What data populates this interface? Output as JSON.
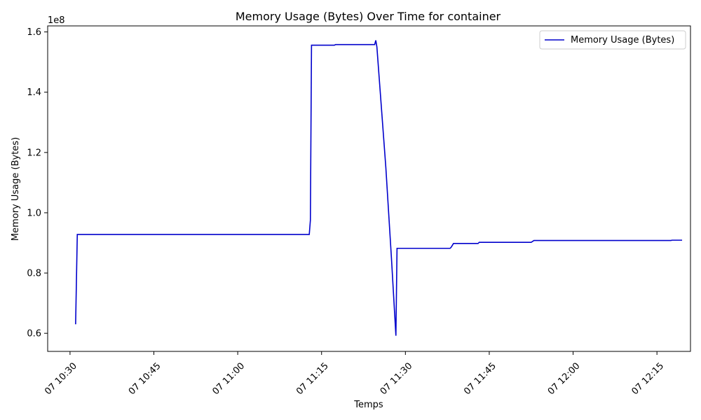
{
  "chart_data": {
    "type": "line",
    "title": "Memory Usage (Bytes) Over Time for container",
    "xlabel": "Temps",
    "ylabel": "Memory Usage (Bytes)",
    "y_offset_label": "1e8",
    "x_tick_labels": [
      "07 10:30",
      "07 10:45",
      "07 11:00",
      "07 11:15",
      "07 11:30",
      "07 11:45",
      "07 12:00",
      "07 12:15"
    ],
    "x_ticks": [
      "2024-01-07 10:30",
      "2024-01-07 10:45",
      "2024-01-07 11:00",
      "2024-01-07 11:15",
      "2024-01-07 11:30",
      "2024-01-07 11:45",
      "2024-01-07 12:00",
      "2024-01-07 12:15"
    ],
    "y_ticks": [
      0.6,
      0.8,
      1.0,
      1.2,
      1.4,
      1.6
    ],
    "y_tick_labels": [
      "0.6",
      "0.8",
      "1.0",
      "1.2",
      "1.4",
      "1.6"
    ],
    "xlim": [
      "2024-01-07 10:26",
      "2024-01-07 12:21"
    ],
    "ylim": [
      0.54,
      1.62
    ],
    "legend": "top-right",
    "grid": false,
    "series": [
      {
        "name": "Memory Usage (Bytes)",
        "color": "#0000cc",
        "points": [
          [
            "2024-01-07 10:31",
            0.63
          ],
          [
            "2024-01-07 10:31.3",
            0.928
          ],
          [
            "2024-01-07 10:40",
            0.928
          ],
          [
            "2024-01-07 11:00",
            0.928
          ],
          [
            "2024-01-07 11:12.8",
            0.928
          ],
          [
            "2024-01-07 11:13",
            0.975
          ],
          [
            "2024-01-07 11:13.2",
            1.556
          ],
          [
            "2024-01-07 11:17.3",
            1.556
          ],
          [
            "2024-01-07 11:17.5",
            1.558
          ],
          [
            "2024-01-07 11:24.5",
            1.558
          ],
          [
            "2024-01-07 11:24.7",
            1.572
          ],
          [
            "2024-01-07 11:24.9",
            1.55
          ],
          [
            "2024-01-07 11:25.5",
            1.4
          ],
          [
            "2024-01-07 11:26.5",
            1.15
          ],
          [
            "2024-01-07 11:27.5",
            0.85
          ],
          [
            "2024-01-07 11:28.3",
            0.592
          ],
          [
            "2024-01-07 11:28.5",
            0.882
          ],
          [
            "2024-01-07 11:33",
            0.882
          ],
          [
            "2024-01-07 11:38",
            0.882
          ],
          [
            "2024-01-07 11:38.2",
            0.886
          ],
          [
            "2024-01-07 11:38.4",
            0.892
          ],
          [
            "2024-01-07 11:38.6",
            0.898
          ],
          [
            "2024-01-07 11:43",
            0.898
          ],
          [
            "2024-01-07 11:43.2",
            0.902
          ],
          [
            "2024-01-07 11:52.5",
            0.902
          ],
          [
            "2024-01-07 11:53",
            0.908
          ],
          [
            "2024-01-07 12:00",
            0.908
          ],
          [
            "2024-01-07 12:17.5",
            0.908
          ],
          [
            "2024-01-07 12:17.7",
            0.909
          ],
          [
            "2024-01-07 12:19.5",
            0.909
          ]
        ]
      }
    ]
  }
}
